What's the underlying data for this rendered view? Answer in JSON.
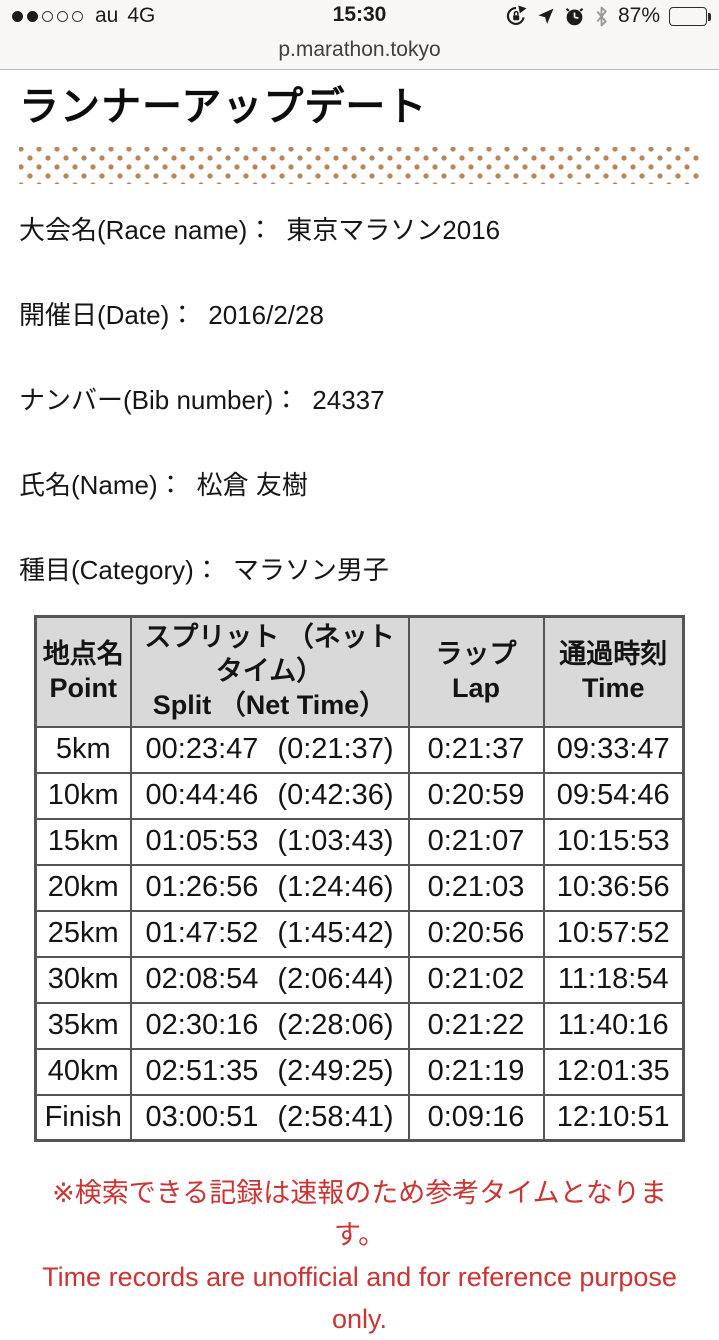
{
  "colors": {
    "accent_red": "#cc3333",
    "band_dot": "#b3895a",
    "table_header_bg": "#d9d9d9",
    "table_border": "#555555"
  },
  "status_bar": {
    "carrier": "au",
    "network": "4G",
    "time": "15:30",
    "battery_percent": "87%",
    "battery_level": 87,
    "signal_filled": 2,
    "signal_total": 5
  },
  "address_bar": {
    "url": "p.marathon.tokyo"
  },
  "page": {
    "title": "ランナーアップデート",
    "info_rows": [
      {
        "label": "大会名(Race name)：",
        "value": "東京マラソン2016"
      },
      {
        "label": "開催日(Date)：",
        "value": "2016/2/28"
      },
      {
        "label": "ナンバー(Bib number)：",
        "value": "24337"
      },
      {
        "label": "氏名(Name)：",
        "value": "松倉 友樹"
      },
      {
        "label": "種目(Category)：",
        "value": "マラソン男子"
      }
    ],
    "table": {
      "headers": {
        "point_jp": "地点名",
        "point_en": "Point",
        "split_jp": "スプリット （ネットタイム）",
        "split_en": "Split （Net Time）",
        "lap_jp": "ラップ",
        "lap_en": "Lap",
        "time_jp": "通過時刻",
        "time_en": "Time"
      },
      "rows": [
        {
          "point": "5km",
          "split": "00:23:47",
          "net": "(0:21:37)",
          "lap": "0:21:37",
          "time": "09:33:47"
        },
        {
          "point": "10km",
          "split": "00:44:46",
          "net": "(0:42:36)",
          "lap": "0:20:59",
          "time": "09:54:46"
        },
        {
          "point": "15km",
          "split": "01:05:53",
          "net": "(1:03:43)",
          "lap": "0:21:07",
          "time": "10:15:53"
        },
        {
          "point": "20km",
          "split": "01:26:56",
          "net": "(1:24:46)",
          "lap": "0:21:03",
          "time": "10:36:56"
        },
        {
          "point": "25km",
          "split": "01:47:52",
          "net": "(1:45:42)",
          "lap": "0:20:56",
          "time": "10:57:52"
        },
        {
          "point": "30km",
          "split": "02:08:54",
          "net": "(2:06:44)",
          "lap": "0:21:02",
          "time": "11:18:54"
        },
        {
          "point": "35km",
          "split": "02:30:16",
          "net": "(2:28:06)",
          "lap": "0:21:22",
          "time": "11:40:16"
        },
        {
          "point": "40km",
          "split": "02:51:35",
          "net": "(2:49:25)",
          "lap": "0:21:19",
          "time": "12:01:35"
        },
        {
          "point": "Finish",
          "split": "03:00:51",
          "net": "(2:58:41)",
          "lap": "0:09:16",
          "time": "12:10:51"
        }
      ]
    },
    "footer_note": {
      "jp": "※検索できる記録は速報のため参考タイムとなります。",
      "en": "Time records are unofficial and for reference purpose only."
    }
  }
}
